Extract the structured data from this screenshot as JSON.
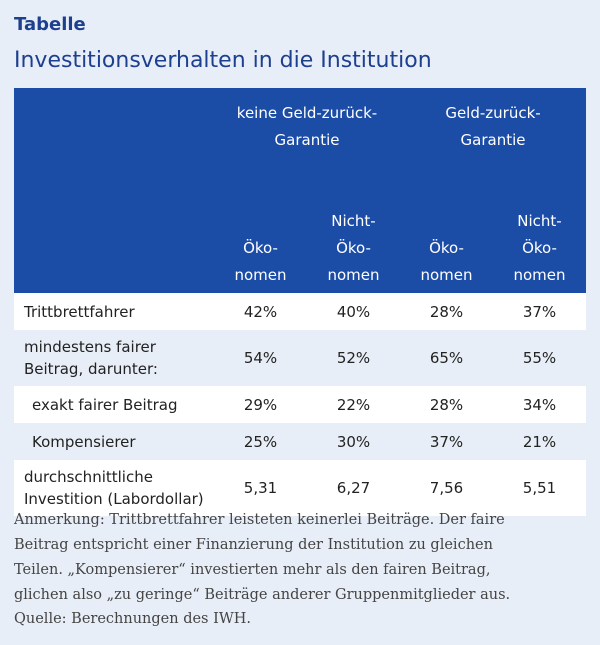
{
  "label": "Tabelle",
  "title": "Investitionsverhalten in die Institution",
  "table": {
    "group_headers": [
      "keine Geld-zurück-Garantie",
      "Geld-zurück-Garantie"
    ],
    "group_header_lines": [
      [
        "keine Geld-zurück-",
        "Garantie"
      ],
      [
        "Geld-zurück-",
        "Garantie"
      ]
    ],
    "sub_headers": [
      [
        "",
        "Öko-",
        "nomen"
      ],
      [
        "Nicht-",
        "Öko-",
        "nomen"
      ],
      [
        "",
        "Öko-",
        "nomen"
      ],
      [
        "Nicht-",
        "Öko-",
        "nomen"
      ]
    ],
    "rows": [
      {
        "label_lines": [
          "Trittbrettfahrer"
        ],
        "values": [
          "42%",
          "40%",
          "28%",
          "37%"
        ]
      },
      {
        "label_lines": [
          "mindestens fairer",
          "Beitrag, darunter:"
        ],
        "values": [
          "54%",
          "52%",
          "65%",
          "55%"
        ]
      },
      {
        "label_lines": [
          "exakt fairer Beitrag"
        ],
        "values": [
          "29%",
          "22%",
          "28%",
          "34%"
        ]
      },
      {
        "label_lines": [
          "Kompensierer"
        ],
        "values": [
          "25%",
          "30%",
          "37%",
          "21%"
        ]
      },
      {
        "label_lines": [
          "durchschnittliche",
          "Investition (Labordollar)"
        ],
        "values": [
          "5,31",
          "6,27",
          "7,56",
          "5,51"
        ]
      }
    ]
  },
  "note_lines": [
    "Anmerkung: Trittbrettfahrer leisteten keinerlei Beiträge. Der faire",
    "Beitrag entspricht einer Finanzierung der Institution zu gleichen",
    "Teilen. „Kompensierer“ investierten mehr als den fairen Beitrag,",
    "glichen also „zu geringe“ Beiträge anderer Gruppenmitglieder aus."
  ],
  "source": "Quelle: Berechnungen des IWH.",
  "colors": {
    "header_bg": "#1c4da6",
    "title": "#1d3f8f",
    "page_bg": "#e8eef7"
  }
}
